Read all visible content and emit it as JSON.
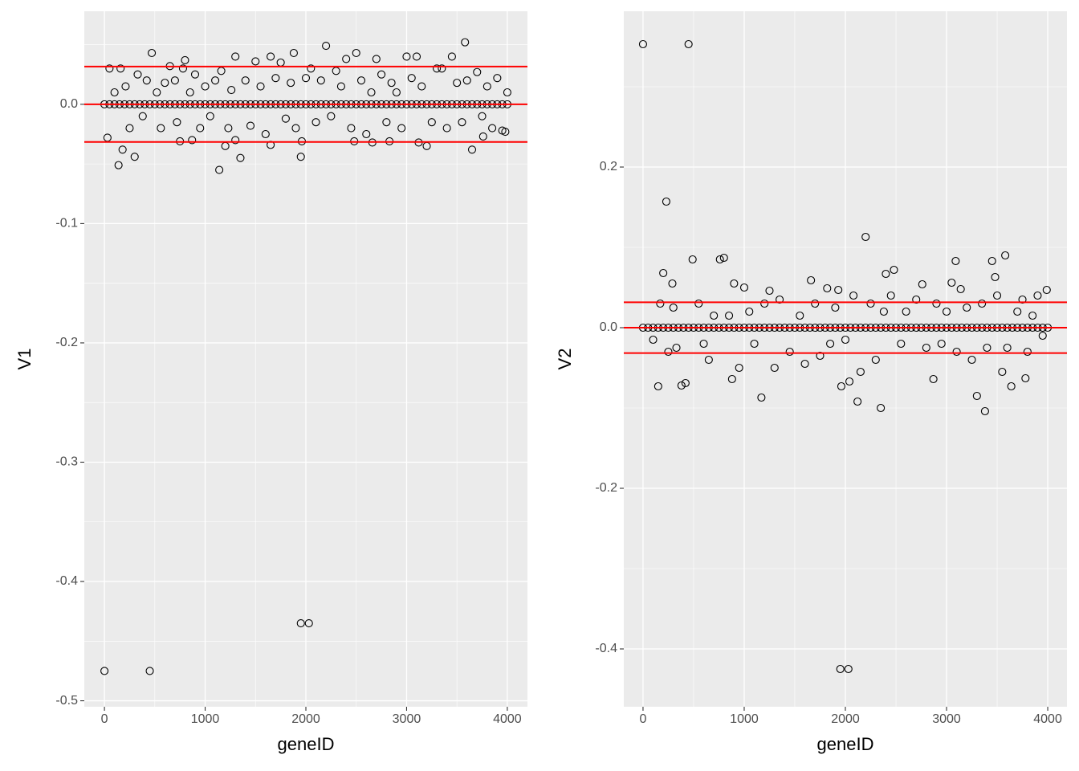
{
  "chart_data": [
    {
      "type": "scatter",
      "xlabel": "geneID",
      "ylabel": "V1",
      "xlim": [
        -200,
        4200
      ],
      "ylim": [
        -0.505,
        0.078
      ],
      "xticks": [
        0,
        1000,
        2000,
        3000,
        4000
      ],
      "yticks": [
        -0.5,
        -0.4,
        -0.3,
        -0.2,
        -0.1,
        {
          "value": 0,
          "label": "0.0"
        }
      ],
      "xminor": [
        500,
        1500,
        2500,
        3500
      ],
      "yminor": [
        -0.45,
        -0.35,
        -0.25,
        -0.15,
        -0.05,
        0.05
      ],
      "grid": true,
      "color": "#000000",
      "hlines": [
        0.0316,
        0,
        -0.0316
      ],
      "hline_color": "#ff0000",
      "series": [
        {
          "x": [
            0,
            450,
            1950,
            2030,
            470,
            2200,
            3580,
            1880,
            2500,
            1300,
            3000,
            3450,
            1650,
            3100,
            2400,
            2700,
            800,
            1500,
            140,
            1140,
            300,
            1350,
            1950,
            180,
            3650,
            1200,
            1650,
            3200,
            3120,
            30,
            750,
            2480,
            2660,
            870,
            1300,
            1960,
            2830,
            3760,
            50,
            100,
            160,
            210,
            250,
            330,
            380,
            420,
            520,
            560,
            600,
            650,
            700,
            720,
            780,
            850,
            900,
            950,
            1000,
            1050,
            1100,
            1160,
            1230,
            1260,
            1400,
            1450,
            1550,
            1600,
            1700,
            1750,
            1800,
            1850,
            1900,
            2000,
            2050,
            2100,
            2150,
            2250,
            2300,
            2350,
            2450,
            2550,
            2600,
            2650,
            2750,
            2800,
            2850,
            2900,
            2950,
            3050,
            3150,
            3250,
            3300,
            3350,
            3400,
            3500,
            3550,
            3600,
            3700,
            3750,
            3800,
            3850,
            3900,
            3950,
            4000,
            3980
          ],
          "values": [
            -0.475,
            -0.475,
            -0.435,
            -0.435,
            0.043,
            0.049,
            0.052,
            0.043,
            0.043,
            0.04,
            0.04,
            0.04,
            0.04,
            0.04,
            0.038,
            0.038,
            0.037,
            0.036,
            -0.051,
            -0.055,
            -0.044,
            -0.045,
            -0.044,
            -0.038,
            -0.038,
            -0.035,
            -0.034,
            -0.035,
            -0.032,
            -0.028,
            -0.031,
            -0.031,
            -0.032,
            -0.03,
            -0.03,
            -0.031,
            -0.031,
            -0.027,
            0.03,
            0.01,
            0.03,
            0.015,
            -0.02,
            0.025,
            -0.01,
            0.02,
            0.01,
            -0.02,
            0.018,
            0.032,
            0.02,
            -0.015,
            0.03,
            0.01,
            0.025,
            -0.02,
            0.015,
            -0.01,
            0.02,
            0.028,
            -0.02,
            0.012,
            0.02,
            -0.018,
            0.015,
            -0.025,
            0.022,
            0.035,
            -0.012,
            0.018,
            -0.02,
            0.022,
            0.03,
            -0.015,
            0.02,
            -0.01,
            0.028,
            0.015,
            -0.02,
            0.02,
            -0.025,
            0.01,
            0.025,
            -0.015,
            0.018,
            0.01,
            -0.02,
            0.022,
            0.015,
            -0.015,
            0.03,
            0.03,
            -0.02,
            0.018,
            -0.015,
            0.02,
            0.027,
            -0.01,
            0.015,
            -0.02,
            0.022,
            -0.022,
            0.01,
            -0.023
          ]
        },
        {
          "x": [
            0,
            50,
            100,
            150,
            200,
            250,
            300,
            350,
            400,
            450,
            500,
            550,
            600,
            650,
            700,
            750,
            800,
            850,
            900,
            950,
            1000,
            1050,
            1100,
            1150,
            1200,
            1250,
            1300,
            1350,
            1400,
            1450,
            1500,
            1550,
            1600,
            1650,
            1700,
            1750,
            1800,
            1850,
            1900,
            1950,
            2000,
            2050,
            2100,
            2150,
            2200,
            2250,
            2300,
            2350,
            2400,
            2450,
            2500,
            2550,
            2600,
            2650,
            2700,
            2750,
            2800,
            2850,
            2900,
            2950,
            3000,
            3050,
            3100,
            3150,
            3200,
            3250,
            3300,
            3350,
            3400,
            3450,
            3500,
            3550,
            3600,
            3650,
            3700,
            3750,
            3800,
            3850,
            3900,
            3950,
            4000
          ],
          "values": [
            0,
            0,
            0,
            0,
            0,
            0,
            0,
            0,
            0,
            0,
            0,
            0,
            0,
            0,
            0,
            0,
            0,
            0,
            0,
            0,
            0,
            0,
            0,
            0,
            0,
            0,
            0,
            0,
            0,
            0,
            0,
            0,
            0,
            0,
            0,
            0,
            0,
            0,
            0,
            0,
            0,
            0,
            0,
            0,
            0,
            0,
            0,
            0,
            0,
            0,
            0,
            0,
            0,
            0,
            0,
            0,
            0,
            0,
            0,
            0,
            0,
            0,
            0,
            0,
            0,
            0,
            0,
            0,
            0,
            0,
            0,
            0,
            0,
            0,
            0,
            0,
            0,
            0,
            0,
            0,
            0
          ]
        }
      ]
    },
    {
      "type": "scatter",
      "xlabel": "geneID",
      "ylabel": "V2",
      "xlim": [
        -190,
        4190
      ],
      "ylim": [
        -0.472,
        0.394
      ],
      "xticks": [
        0,
        1000,
        2000,
        3000,
        4000
      ],
      "yticks": [
        -0.4,
        -0.2,
        {
          "value": 0,
          "label": "0.0"
        },
        0.2
      ],
      "xminor": [
        500,
        1500,
        2500,
        3500
      ],
      "yminor": [
        -0.3,
        -0.1,
        0.1,
        0.3
      ],
      "grid": true,
      "color": "#000000",
      "hlines": [
        0.0316,
        0,
        -0.0316
      ],
      "hline_color": "#ff0000",
      "series": [
        {
          "x": [
            0,
            450,
            1950,
            2030,
            230,
            2200,
            3380,
            2350,
            1170,
            3300,
            2120,
            3580,
            760,
            800,
            490,
            3090,
            3450,
            2480,
            200,
            880,
            380,
            420,
            150,
            1960,
            2040,
            3640,
            3780,
            2870,
            2400,
            1660,
            900,
            290,
            3050,
            3140,
            3480,
            3990,
            1930,
            1000,
            1250,
            1820,
            2760,
            100,
            170,
            250,
            300,
            330,
            550,
            600,
            650,
            700,
            850,
            950,
            1050,
            1100,
            1200,
            1300,
            1350,
            1450,
            1550,
            1600,
            1700,
            1750,
            1850,
            1900,
            2000,
            2080,
            2150,
            2250,
            2300,
            2380,
            2450,
            2550,
            2600,
            2700,
            2800,
            2900,
            2950,
            3000,
            3100,
            3200,
            3250,
            3350,
            3400,
            3500,
            3550,
            3600,
            3700,
            3750,
            3800,
            3850,
            3900,
            3950
          ],
          "values": [
            0.353,
            0.353,
            -0.425,
            -0.425,
            0.157,
            0.113,
            -0.104,
            -0.1,
            -0.087,
            -0.085,
            -0.092,
            0.09,
            0.085,
            0.087,
            0.085,
            0.083,
            0.083,
            0.072,
            0.068,
            -0.064,
            -0.072,
            -0.069,
            -0.073,
            -0.073,
            -0.067,
            -0.073,
            -0.063,
            -0.064,
            0.067,
            0.059,
            0.055,
            0.055,
            0.056,
            0.048,
            0.063,
            0.047,
            0.047,
            0.05,
            0.046,
            0.049,
            0.054,
            -0.015,
            0.03,
            -0.03,
            0.025,
            -0.025,
            0.03,
            -0.02,
            -0.04,
            0.015,
            0.015,
            -0.05,
            0.02,
            -0.02,
            0.03,
            -0.05,
            0.035,
            -0.03,
            0.015,
            -0.045,
            0.03,
            -0.035,
            -0.02,
            0.025,
            -0.015,
            0.04,
            -0.055,
            0.03,
            -0.04,
            0.02,
            0.04,
            -0.02,
            0.02,
            0.035,
            -0.025,
            0.03,
            -0.02,
            0.02,
            -0.03,
            0.025,
            -0.04,
            0.03,
            -0.025,
            0.04,
            -0.055,
            -0.025,
            0.02,
            0.035,
            -0.03,
            0.015,
            0.04,
            -0.01
          ]
        },
        {
          "x": [
            0,
            50,
            100,
            150,
            200,
            250,
            300,
            350,
            400,
            450,
            500,
            550,
            600,
            650,
            700,
            750,
            800,
            850,
            900,
            950,
            1000,
            1050,
            1100,
            1150,
            1200,
            1250,
            1300,
            1350,
            1400,
            1450,
            1500,
            1550,
            1600,
            1650,
            1700,
            1750,
            1800,
            1850,
            1900,
            1950,
            2000,
            2050,
            2100,
            2150,
            2200,
            2250,
            2300,
            2350,
            2400,
            2450,
            2500,
            2550,
            2600,
            2650,
            2700,
            2750,
            2800,
            2850,
            2900,
            2950,
            3000,
            3050,
            3100,
            3150,
            3200,
            3250,
            3300,
            3350,
            3400,
            3450,
            3500,
            3550,
            3600,
            3650,
            3700,
            3750,
            3800,
            3850,
            3900,
            3950,
            4000
          ],
          "values": [
            0,
            0,
            0,
            0,
            0,
            0,
            0,
            0,
            0,
            0,
            0,
            0,
            0,
            0,
            0,
            0,
            0,
            0,
            0,
            0,
            0,
            0,
            0,
            0,
            0,
            0,
            0,
            0,
            0,
            0,
            0,
            0,
            0,
            0,
            0,
            0,
            0,
            0,
            0,
            0,
            0,
            0,
            0,
            0,
            0,
            0,
            0,
            0,
            0,
            0,
            0,
            0,
            0,
            0,
            0,
            0,
            0,
            0,
            0,
            0,
            0,
            0,
            0,
            0,
            0,
            0,
            0,
            0,
            0,
            0,
            0,
            0,
            0,
            0,
            0,
            0,
            0,
            0,
            0,
            0,
            0
          ]
        }
      ]
    }
  ]
}
